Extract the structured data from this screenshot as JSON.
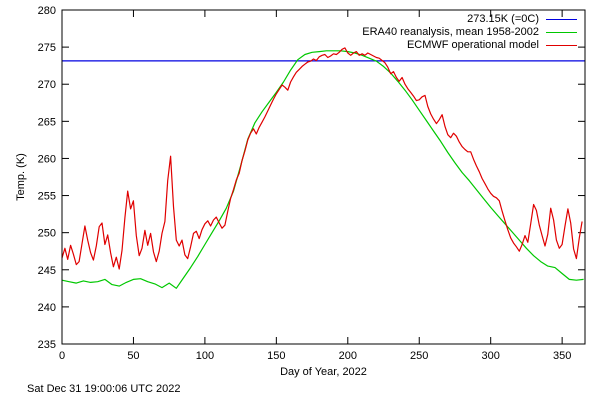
{
  "page": {
    "timestamp": "Sat Dec 31 19:00:06 UTC 2022"
  },
  "chart_data": {
    "type": "line",
    "title": "",
    "xlabel": "Day of Year, 2022",
    "ylabel": "Temp. (K)",
    "xlim": [
      0,
      366
    ],
    "ylim": [
      235,
      280
    ],
    "xticks": [
      0,
      50,
      100,
      150,
      200,
      250,
      300,
      350
    ],
    "yticks": [
      235,
      240,
      245,
      250,
      255,
      260,
      265,
      270,
      275,
      280
    ],
    "grid": false,
    "legend_position": "top-right-inside",
    "axis_color": "#000000",
    "series": [
      {
        "name": "273.15K (=0C)",
        "color": "#0000e0",
        "type": "hline",
        "y": 273.15
      },
      {
        "name": "ERA40 reanalysis, mean 1958-2002",
        "color": "#00c800",
        "type": "line",
        "x_start": 0,
        "x_step": 5,
        "values": [
          243.6,
          243.4,
          243.2,
          243.5,
          243.3,
          243.4,
          243.7,
          243.0,
          242.8,
          243.3,
          243.7,
          243.8,
          243.4,
          243.1,
          242.6,
          243.2,
          242.5,
          243.9,
          245.3,
          246.8,
          248.4,
          250.0,
          251.6,
          253.3,
          255.6,
          259.0,
          262.6,
          264.8,
          266.3,
          267.6,
          268.9,
          270.3,
          271.9,
          273.3,
          274.0,
          274.3,
          274.4,
          274.5,
          274.5,
          274.5,
          274.4,
          274.2,
          273.9,
          273.5,
          273.1,
          272.4,
          271.5,
          270.4,
          269.2,
          267.9,
          266.5,
          265.1,
          263.7,
          262.3,
          260.8,
          259.4,
          258.1,
          257.0,
          255.8,
          254.6,
          253.4,
          252.3,
          251.2,
          250.1,
          249.0,
          247.9,
          246.9,
          246.1,
          245.5,
          245.3,
          244.5,
          243.7,
          243.6,
          243.7
        ]
      },
      {
        "name": "ECMWF operational model",
        "color": "#e00000",
        "type": "line",
        "x_start": 0,
        "x_step": 2,
        "values": [
          246.6,
          247.9,
          246.4,
          248.3,
          247.1,
          245.7,
          246.1,
          248.5,
          250.9,
          249.0,
          247.3,
          246.3,
          248.2,
          250.8,
          251.3,
          248.4,
          249.7,
          247.3,
          245.4,
          246.7,
          245.1,
          247.6,
          252.0,
          255.6,
          253.2,
          254.3,
          249.6,
          246.9,
          247.9,
          250.3,
          248.3,
          249.9,
          247.4,
          246.1,
          247.5,
          249.9,
          251.5,
          257.0,
          260.3,
          253.5,
          249.0,
          248.2,
          249.0,
          247.0,
          246.5,
          248.1,
          249.9,
          250.2,
          249.2,
          250.4,
          251.2,
          251.6,
          250.9,
          251.7,
          252.1,
          251.3,
          250.6,
          251.0,
          252.9,
          254.6,
          255.8,
          257.1,
          258.0,
          259.7,
          261.0,
          262.5,
          263.4,
          264.0,
          263.3,
          264.2,
          264.9,
          265.6,
          266.4,
          267.2,
          268.0,
          268.7,
          269.3,
          269.9,
          269.6,
          269.2,
          270.3,
          271.0,
          271.6,
          272.0,
          272.4,
          272.7,
          273.0,
          273.1,
          273.4,
          273.2,
          273.7,
          273.9,
          274.0,
          273.6,
          273.8,
          274.1,
          274.0,
          274.3,
          274.7,
          274.9,
          274.2,
          273.9,
          274.2,
          274.4,
          273.9,
          274.1,
          273.9,
          274.2,
          274.0,
          273.8,
          273.6,
          273.5,
          273.2,
          272.9,
          272.3,
          271.4,
          271.7,
          270.9,
          270.4,
          270.9,
          270.0,
          269.4,
          268.9,
          268.4,
          267.8,
          267.9,
          268.3,
          268.5,
          267.0,
          266.0,
          265.3,
          264.7,
          265.2,
          265.9,
          264.3,
          263.2,
          262.8,
          263.4,
          263.0,
          262.2,
          261.6,
          261.2,
          260.9,
          260.9,
          259.9,
          259.0,
          258.2,
          257.3,
          256.6,
          255.9,
          255.3,
          254.9,
          254.7,
          254.3,
          252.9,
          251.6,
          250.4,
          249.3,
          248.6,
          248.1,
          247.5,
          248.4,
          249.6,
          248.7,
          251.2,
          253.8,
          253.0,
          251.0,
          249.6,
          248.2,
          249.8,
          253.3,
          251.7,
          249.0,
          247.9,
          248.4,
          250.9,
          253.2,
          251.3,
          247.8,
          246.5,
          249.3,
          251.5
        ]
      }
    ]
  }
}
